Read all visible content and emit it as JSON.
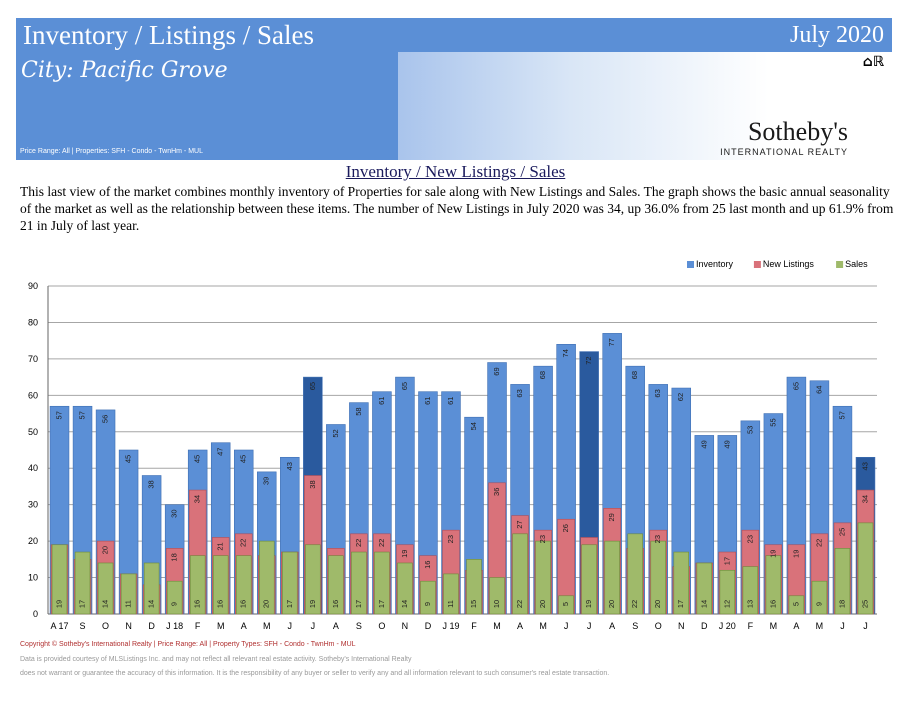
{
  "header": {
    "title": "Inventory / Listings / Sales",
    "date": "July 2020",
    "city": "City:  Pacific Grove",
    "filters": "Price Range:  All | Properties:  SFH - Condo - TwnHm - MUL",
    "brand": "Sotheby's",
    "brand_sub": "INTERNATIONAL REALTY",
    "eho_icon": "equal-housing-realtor-icon"
  },
  "section": {
    "title": "Inventory / New Listings / Sales",
    "description": "This last view of the market combines monthly inventory of Properties for sale along with New Listings and Sales.  The graph shows the basic annual seasonality of the market as well as the relationship between these items.  The number of New Listings in July 2020 was 34, up 36.0% from 25 last month and up 61.9% from 21 in July of last year."
  },
  "footer": {
    "copyright": "Copyright © Sotheby's International Realty  |  Price Range:  All  |  Property Types:  SFH - Condo - TwnHm - MUL",
    "line2": "Data is provided courtesy of MLSListings Inc. and may not reflect all relevant real estate activity.  Sotheby's International Realty",
    "line3": "does not warrant or guarantee the accuracy of this information.  It is the responsibility of any buyer or seller to verify any and all information relevant to such consumer's real estate transaction."
  },
  "chart_data": {
    "type": "bar",
    "title": "",
    "xlabel": "",
    "ylabel": "",
    "ylim": [
      0,
      90
    ],
    "yticks": [
      0,
      10,
      20,
      30,
      40,
      50,
      60,
      70,
      80,
      90
    ],
    "legend_position": "top-right",
    "categories": [
      "A 17",
      "S",
      "O",
      "N",
      "D",
      "J 18",
      "F",
      "M",
      "A",
      "M",
      "J",
      "J",
      "A",
      "S",
      "O",
      "N",
      "D",
      "J 19",
      "F",
      "M",
      "A",
      "M",
      "J",
      "J",
      "A",
      "S",
      "O",
      "N",
      "D",
      "J 20",
      "F",
      "M",
      "A",
      "M",
      "J",
      "J"
    ],
    "highlight": [
      11,
      23,
      35
    ],
    "series": [
      {
        "name": "Inventory",
        "color": "#5b8fd6",
        "highlight_color": "#2a5a9e",
        "values": [
          57,
          57,
          56,
          45,
          38,
          30,
          45,
          47,
          45,
          39,
          43,
          65,
          52,
          58,
          61,
          65,
          61,
          61,
          54,
          69,
          63,
          68,
          74,
          72,
          77,
          68,
          63,
          62,
          49,
          49,
          53,
          55,
          65,
          64,
          57,
          43
        ]
      },
      {
        "name": "New Listings",
        "color": "#d9727a",
        "values": [
          19,
          15,
          20,
          11,
          8,
          18,
          34,
          21,
          22,
          16,
          17,
          38,
          18,
          22,
          22,
          19,
          16,
          23,
          12,
          36,
          27,
          23,
          26,
          21,
          29,
          18,
          23,
          13,
          14,
          17,
          23,
          19,
          19,
          22,
          25,
          34
        ]
      },
      {
        "name": "Sales",
        "color": "#9fba6a",
        "values": [
          19,
          17,
          14,
          11,
          14,
          9,
          16,
          16,
          16,
          20,
          17,
          19,
          16,
          17,
          17,
          14,
          9,
          11,
          15,
          10,
          22,
          20,
          5,
          19,
          20,
          22,
          20,
          17,
          14,
          12,
          13,
          16,
          5,
          9,
          18,
          25
        ]
      }
    ]
  }
}
